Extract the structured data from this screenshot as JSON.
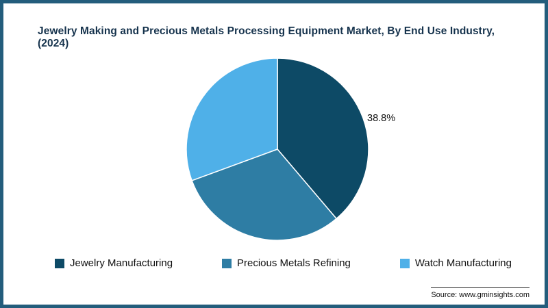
{
  "title": "Jewelry Making and Precious Metals Processing Equipment Market, By End Use Industry, (2024)",
  "source": "Source: www.gminsights.com",
  "chart_data": {
    "type": "pie",
    "title": "Jewelry Making and Precious Metals Processing Equipment Market, By End Use Industry, (2024)",
    "labels": [
      "Jewelry Manufacturing",
      "Precious Metals Refining",
      "Watch Manufacturing"
    ],
    "values": [
      38.8,
      30.6,
      30.6
    ],
    "colors": [
      "#0d4a66",
      "#2e7da4",
      "#4fb0e8"
    ],
    "data_labels": [
      "38.8%",
      "",
      ""
    ],
    "start_angle_deg": -90,
    "direction": "clockwise",
    "legend_position": "bottom",
    "slice_border_color": "#ffffff"
  }
}
